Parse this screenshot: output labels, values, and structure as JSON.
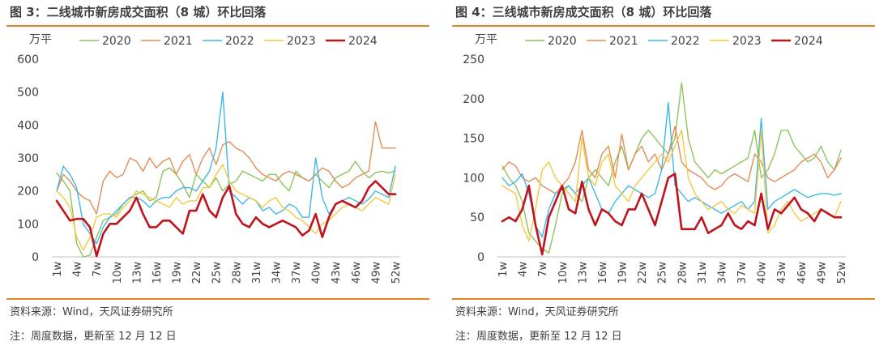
{
  "colors": {
    "accent_rule": "#e8822a",
    "series": {
      "2020": "#8cc55b",
      "2021": "#e38d55",
      "2022": "#3fb8e8",
      "2023": "#f4c842",
      "2024": "#c0141c"
    }
  },
  "panels": [
    {
      "title": "图 3：二线城市新房成交面积（8 城）环比回落",
      "source": "资料来源：Wind，天风证券研究所",
      "note": "注：周度数据，更新至 12 月 12 日"
    },
    {
      "title": "图 4：三线城市新房成交面积（8 城）环比回落",
      "source": "资料来源：Wind，天风证券研究所",
      "note": "注：周度数据，更新至 12 月 12 日"
    }
  ],
  "chart_data": [
    {
      "type": "line",
      "ylabel": "万平",
      "ylim": [
        0,
        600
      ],
      "yticks": [
        0,
        100,
        200,
        300,
        400,
        500,
        600
      ],
      "x_tick_labels": [
        "1w",
        "4w",
        "7w",
        "10w",
        "13w",
        "16w",
        "19w",
        "22w",
        "25w",
        "28w",
        "31w",
        "34w",
        "37w",
        "40w",
        "43w",
        "46w",
        "49w",
        "52w"
      ],
      "legend_position": "top",
      "grid": false,
      "series": [
        {
          "name": "2020",
          "values": [
            255,
            230,
            200,
            40,
            0,
            5,
            60,
            110,
            120,
            130,
            160,
            180,
            190,
            200,
            170,
            180,
            260,
            270,
            250,
            220,
            180,
            250,
            230,
            210,
            240,
            200,
            220,
            230,
            260,
            250,
            240,
            230,
            250,
            250,
            220,
            200,
            260,
            240,
            230,
            250,
            230,
            210,
            240,
            250,
            260,
            290,
            260,
            240,
            255,
            260,
            255,
            260
          ]
        },
        {
          "name": "2021",
          "values": [
            200,
            250,
            230,
            200,
            180,
            170,
            130,
            230,
            260,
            240,
            250,
            300,
            290,
            260,
            300,
            270,
            290,
            300,
            250,
            290,
            310,
            250,
            300,
            330,
            280,
            340,
            350,
            330,
            320,
            300,
            270,
            250,
            240,
            230,
            250,
            260,
            250,
            240,
            230,
            250,
            270,
            260,
            230,
            210,
            220,
            240,
            250,
            260,
            410,
            330,
            330,
            330
          ]
        },
        {
          "name": "2022",
          "values": [
            200,
            275,
            250,
            210,
            100,
            70,
            40,
            90,
            120,
            140,
            160,
            180,
            180,
            170,
            150,
            170,
            180,
            180,
            200,
            210,
            210,
            200,
            230,
            260,
            330,
            500,
            200,
            180,
            160,
            180,
            170,
            140,
            150,
            130,
            140,
            160,
            150,
            120,
            120,
            300,
            180,
            130,
            160,
            170,
            180,
            170,
            160,
            175,
            200,
            190,
            180,
            275
          ]
        },
        {
          "name": "2023",
          "values": [
            200,
            180,
            150,
            60,
            20,
            60,
            120,
            130,
            130,
            120,
            150,
            170,
            200,
            190,
            180,
            170,
            160,
            150,
            180,
            160,
            170,
            170,
            210,
            210,
            250,
            280,
            230,
            200,
            190,
            180,
            170,
            150,
            170,
            180,
            150,
            140,
            120,
            110,
            90,
            70,
            100,
            110,
            130,
            150,
            160,
            150,
            140,
            160,
            180,
            170,
            160,
            250
          ]
        },
        {
          "name": "2024",
          "values": [
            170,
            140,
            110,
            115,
            115,
            90,
            2,
            70,
            100,
            100,
            120,
            140,
            180,
            130,
            90,
            90,
            110,
            110,
            90,
            70,
            140,
            140,
            190,
            140,
            120,
            180,
            215,
            130,
            100,
            90,
            120,
            100,
            90,
            100,
            110,
            100,
            90,
            65,
            80,
            130,
            60,
            120,
            160,
            170,
            160,
            150,
            170,
            210,
            230,
            210,
            190,
            190
          ]
        }
      ]
    },
    {
      "type": "line",
      "ylabel": "万平",
      "ylim": [
        0,
        250
      ],
      "yticks": [
        0,
        50,
        100,
        150,
        200,
        250
      ],
      "x_tick_labels": [
        "1w",
        "4w",
        "7w",
        "10w",
        "13w",
        "16w",
        "19w",
        "22w",
        "25w",
        "28w",
        "31w",
        "34w",
        "37w",
        "40w",
        "43w",
        "46w",
        "49w",
        "52w"
      ],
      "legend_position": "top",
      "grid": false,
      "series": [
        {
          "name": "2020",
          "values": [
            115,
            100,
            90,
            70,
            30,
            20,
            10,
            5,
            40,
            80,
            90,
            80,
            70,
            100,
            110,
            100,
            90,
            120,
            140,
            110,
            130,
            150,
            160,
            150,
            140,
            130,
            150,
            220,
            150,
            120,
            110,
            100,
            110,
            105,
            110,
            115,
            120,
            125,
            160,
            100,
            110,
            130,
            160,
            160,
            140,
            130,
            120,
            125,
            140,
            120,
            110,
            135
          ]
        },
        {
          "name": "2021",
          "values": [
            110,
            120,
            115,
            100,
            95,
            100,
            90,
            85,
            80,
            90,
            100,
            120,
            160,
            110,
            100,
            130,
            140,
            100,
            155,
            110,
            130,
            140,
            120,
            130,
            110,
            130,
            165,
            120,
            110,
            105,
            100,
            90,
            85,
            90,
            100,
            105,
            100,
            95,
            130,
            120,
            100,
            95,
            100,
            105,
            110,
            120,
            125,
            130,
            120,
            100,
            110,
            125
          ]
        },
        {
          "name": "2022",
          "values": [
            100,
            90,
            95,
            105,
            80,
            40,
            25,
            60,
            80,
            85,
            90,
            80,
            90,
            100,
            80,
            60,
            55,
            70,
            80,
            90,
            85,
            80,
            75,
            80,
            110,
            195,
            90,
            80,
            70,
            75,
            70,
            65,
            60,
            55,
            60,
            65,
            70,
            60,
            70,
            175,
            60,
            70,
            75,
            80,
            85,
            80,
            75,
            78,
            80,
            80,
            78,
            80
          ]
        },
        {
          "name": "2023",
          "values": [
            90,
            85,
            80,
            40,
            20,
            60,
            110,
            120,
            100,
            90,
            80,
            70,
            150,
            100,
            90,
            120,
            130,
            90,
            80,
            70,
            90,
            100,
            110,
            120,
            130,
            120,
            140,
            160,
            100,
            80,
            70,
            60,
            65,
            70,
            60,
            55,
            65,
            60,
            55,
            160,
            30,
            40,
            60,
            70,
            55,
            45,
            50,
            55,
            60,
            55,
            50,
            70
          ]
        },
        {
          "name": "2024",
          "values": [
            45,
            50,
            45,
            60,
            90,
            40,
            3,
            50,
            70,
            90,
            60,
            55,
            95,
            60,
            40,
            60,
            55,
            45,
            40,
            60,
            60,
            80,
            60,
            40,
            70,
            100,
            105,
            35,
            35,
            35,
            50,
            30,
            35,
            40,
            55,
            40,
            35,
            45,
            40,
            80,
            35,
            60,
            55,
            65,
            75,
            60,
            55,
            45,
            60,
            55,
            50,
            50
          ]
        }
      ]
    }
  ]
}
